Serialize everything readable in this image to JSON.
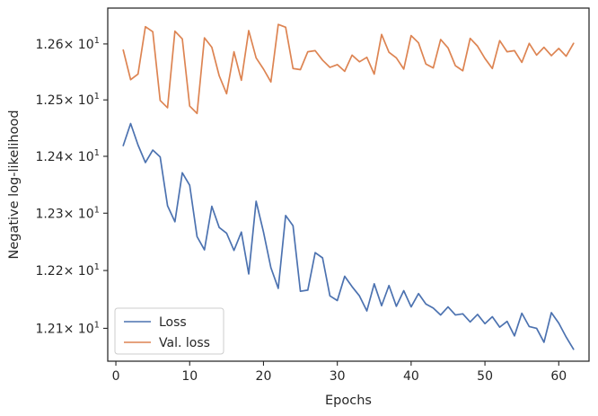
{
  "chart_data": {
    "type": "line",
    "xlabel": "Epochs",
    "ylabel": "Negative log-likelihood",
    "xlim": [
      -1.1,
      64.1
    ],
    "ylim": [
      12.0435,
      12.6645
    ],
    "yscale": "log",
    "grid": false,
    "legend_position": "lower-left",
    "x_ticks": [
      0,
      10,
      20,
      30,
      40,
      50,
      60
    ],
    "x_tick_labels": [
      "0",
      "10",
      "20",
      "30",
      "40",
      "50",
      "60"
    ],
    "y_ticks": [
      12.1,
      12.2,
      12.3,
      12.4,
      12.5,
      12.6
    ],
    "y_tick_mantissas": [
      "1.21",
      "1.22",
      "1.23",
      "1.24",
      "1.25",
      "1.26"
    ],
    "y_tick_multiplier": "× 10",
    "y_tick_exponent": "1",
    "x": [
      1,
      2,
      3,
      4,
      5,
      6,
      7,
      8,
      9,
      10,
      11,
      12,
      13,
      14,
      15,
      16,
      17,
      18,
      19,
      20,
      21,
      22,
      23,
      24,
      25,
      26,
      27,
      28,
      29,
      30,
      31,
      32,
      33,
      34,
      35,
      36,
      37,
      38,
      39,
      40,
      41,
      42,
      43,
      44,
      45,
      46,
      47,
      48,
      49,
      50,
      51,
      52,
      53,
      54,
      55,
      56,
      57,
      58,
      59,
      60,
      61,
      62
    ],
    "series": [
      {
        "name": "Loss",
        "color": "#4c72b0",
        "values": [
          12.419,
          12.458,
          12.42,
          12.389,
          12.411,
          12.399,
          12.313,
          12.285,
          12.371,
          12.349,
          12.259,
          12.236,
          12.312,
          12.275,
          12.265,
          12.235,
          12.267,
          12.194,
          12.321,
          12.267,
          12.205,
          12.169,
          12.296,
          12.278,
          12.164,
          12.166,
          12.231,
          12.222,
          12.156,
          12.148,
          12.19,
          12.172,
          12.156,
          12.13,
          12.177,
          12.139,
          12.174,
          12.138,
          12.165,
          12.137,
          12.16,
          12.142,
          12.135,
          12.123,
          12.137,
          12.123,
          12.125,
          12.111,
          12.124,
          12.108,
          12.12,
          12.102,
          12.112,
          12.087,
          12.126,
          12.103,
          12.1,
          12.076,
          12.127,
          12.109,
          12.085,
          12.064
        ]
      },
      {
        "name": "Val. loss",
        "color": "#dd8452",
        "values": [
          12.589,
          12.536,
          12.546,
          12.631,
          12.622,
          12.499,
          12.486,
          12.623,
          12.609,
          12.489,
          12.476,
          12.611,
          12.594,
          12.543,
          12.511,
          12.586,
          12.535,
          12.624,
          12.575,
          12.555,
          12.532,
          12.635,
          12.63,
          12.556,
          12.554,
          12.586,
          12.588,
          12.571,
          12.558,
          12.563,
          12.551,
          12.58,
          12.568,
          12.576,
          12.546,
          12.617,
          12.585,
          12.575,
          12.555,
          12.615,
          12.602,
          12.564,
          12.557,
          12.608,
          12.593,
          12.561,
          12.552,
          12.61,
          12.596,
          12.574,
          12.556,
          12.606,
          12.586,
          12.588,
          12.567,
          12.601,
          12.58,
          12.594,
          12.579,
          12.592,
          12.578,
          12.601
        ]
      }
    ]
  }
}
